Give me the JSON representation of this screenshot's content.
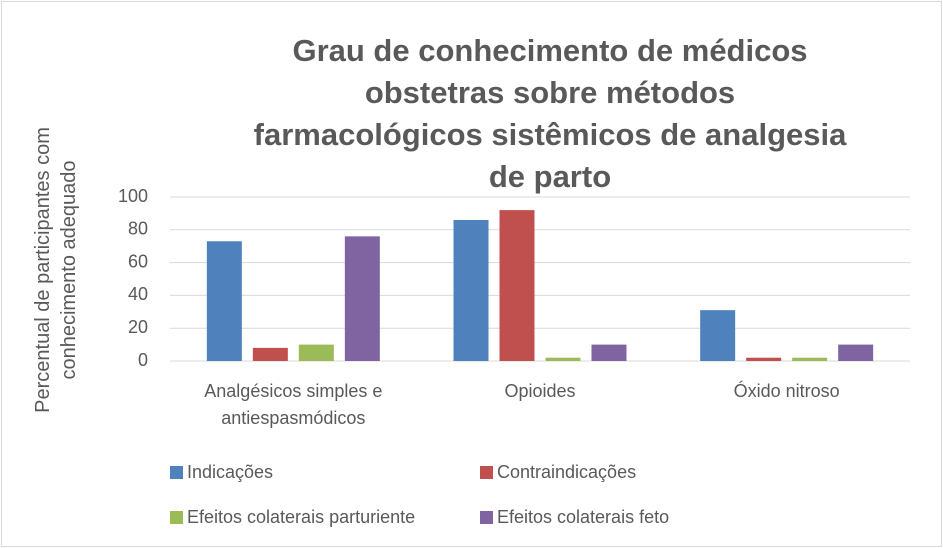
{
  "chart_data": {
    "type": "bar",
    "title": "Grau de conhecimento de médicos obstetras sobre métodos farmacológicos sistêmicos de analgesia de parto",
    "y_label": "Percentual de participantes com conhecimento adequado",
    "categories": [
      "Analgésicos simples e antiespasmódicos",
      "Opioides",
      "Óxido nitroso"
    ],
    "series": [
      {
        "name": "Indicações",
        "color": "#4f81bd",
        "values": [
          73,
          86,
          31
        ]
      },
      {
        "name": "Contraindicações",
        "color": "#c0504d",
        "values": [
          8,
          92,
          2
        ]
      },
      {
        "name": "Efeitos colaterais parturiente",
        "color": "#9bbb59",
        "values": [
          10,
          2,
          2
        ]
      },
      {
        "name": "Efeitos colaterais feto",
        "color": "#8064a2",
        "values": [
          76,
          10,
          10
        ]
      }
    ],
    "ylim": [
      0,
      100
    ],
    "yticks": [
      0,
      20,
      40,
      60,
      80,
      100
    ],
    "grid": true,
    "legend": "bottom"
  }
}
